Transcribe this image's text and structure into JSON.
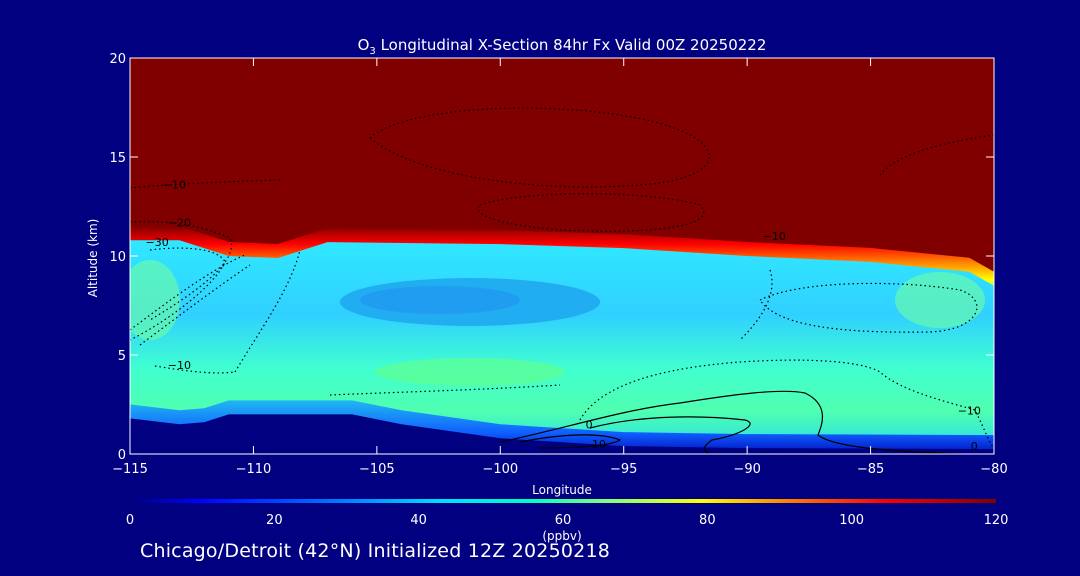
{
  "chart_data": {
    "type": "heatmap",
    "title_prefix": "O",
    "title_sub": "3",
    "title_rest": " Longitudinal X-Section 84hr  Fx Valid 00Z 20250222",
    "xlabel": "Longitude",
    "ylabel": "Altitude (km)",
    "xlim": [
      -115,
      -80
    ],
    "ylim": [
      0,
      20
    ],
    "x_ticks": [
      -115,
      -110,
      -105,
      -100,
      -95,
      -90,
      -85,
      -80
    ],
    "x_tick_labels": [
      "−115",
      "−110",
      "−105",
      "−100",
      "−95",
      "−90",
      "−85",
      "−80"
    ],
    "y_ticks": [
      0,
      5,
      10,
      15,
      20
    ],
    "y_tick_labels": [
      "0",
      "5",
      "10",
      "15",
      "20"
    ],
    "colorbar": {
      "min": 0,
      "max": 120,
      "ticks": [
        0,
        20,
        40,
        60,
        80,
        100,
        120
      ],
      "tick_labels": [
        "0",
        "20",
        "40",
        "60",
        "80",
        "100",
        "120"
      ],
      "unit_label": "(ppbv)",
      "colors": [
        "#00007f",
        "#0000ff",
        "#0080ff",
        "#00e0ff",
        "#00ffc0",
        "#80ff80",
        "#ffff00",
        "#ff8000",
        "#ff0000",
        "#800000"
      ]
    },
    "tropopause_altitude_km": [
      [
        -115,
        10.8
      ],
      [
        -113,
        10.8
      ],
      [
        -111,
        10.0
      ],
      [
        -109,
        9.9
      ],
      [
        -107,
        10.7
      ],
      [
        -100,
        10.6
      ],
      [
        -95,
        10.4
      ],
      [
        -90,
        10.0
      ],
      [
        -85,
        9.7
      ],
      [
        -81,
        9.2
      ],
      [
        -80,
        8.5
      ]
    ],
    "terrain_altitude_km": [
      [
        -115,
        1.8
      ],
      [
        -113,
        1.5
      ],
      [
        -112,
        1.6
      ],
      [
        -111,
        2.0
      ],
      [
        -106,
        2.0
      ],
      [
        -104,
        1.5
      ],
      [
        -100,
        0.8
      ],
      [
        -95,
        0.4
      ],
      [
        -90,
        0.3
      ],
      [
        -80,
        0.25
      ]
    ],
    "contour_labels": [
      {
        "text": "−10",
        "lon": -113.2,
        "alt": 13.4
      },
      {
        "text": "−20",
        "lon": -113.0,
        "alt": 11.5
      },
      {
        "text": "−30",
        "lon": -113.9,
        "alt": 10.5
      },
      {
        "text": "−10",
        "lon": -113.0,
        "alt": 4.3
      },
      {
        "text": "−10",
        "lon": -88.9,
        "alt": 10.8
      },
      {
        "text": "−10",
        "lon": -81.0,
        "alt": 2.0
      },
      {
        "text": "0",
        "lon": -96.4,
        "alt": 1.3
      },
      {
        "text": "10",
        "lon": -96.0,
        "alt": 0.3
      },
      {
        "text": "0",
        "lon": -80.8,
        "alt": 0.2
      }
    ]
  },
  "footer_text": "Chicago/Detroit (42°N) Initialized 12Z 20250218"
}
